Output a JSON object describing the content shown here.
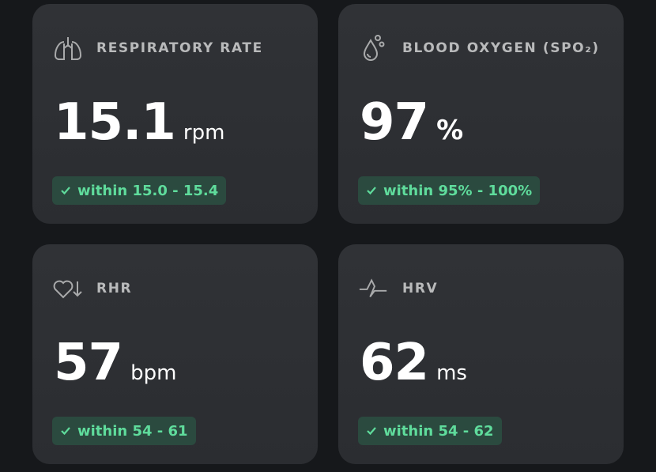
{
  "colors": {
    "background": "#16181b",
    "card": "#2e3034",
    "badge_bg": "#2b4a3f",
    "badge_text": "#5fdc9c"
  },
  "cards": [
    {
      "title": "RESPIRATORY RATE",
      "icon": "lungs-icon",
      "value": "15.1",
      "unit": "rpm",
      "range": "within 15.0 - 15.4"
    },
    {
      "title": "BLOOD OXYGEN (SPO₂)",
      "icon": "droplet-icon",
      "value": "97",
      "unit": "%",
      "range": "within 95% - 100%"
    },
    {
      "title": "RHR",
      "icon": "heart-down-icon",
      "value": "57",
      "unit": "bpm",
      "range": "within 54 - 61"
    },
    {
      "title": "HRV",
      "icon": "pulse-icon",
      "value": "62",
      "unit": "ms",
      "range": "within 54 - 62"
    }
  ]
}
